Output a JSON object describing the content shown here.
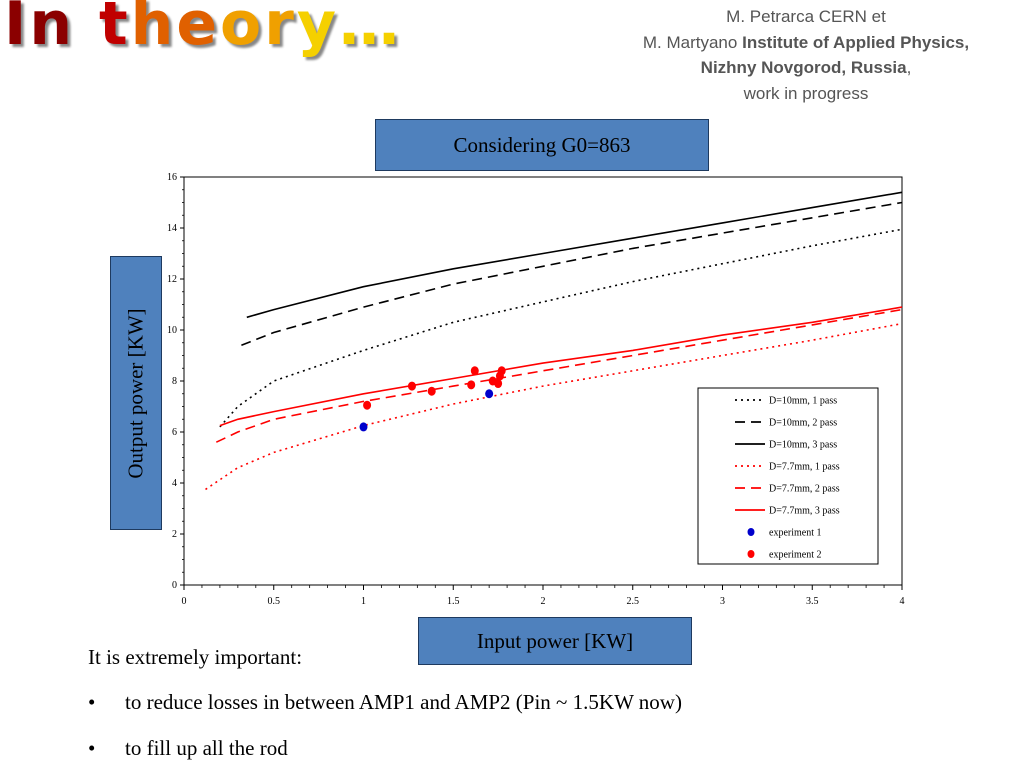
{
  "slide": {
    "title": "In theory…",
    "authors_line1": "M. Petrarca CERN et",
    "authors_line2_name": "M. Martyano",
    "authors_line2_inst": "Institute of Applied Physics,",
    "authors_line3_inst": "Nizhny Novgorod, Russia",
    "authors_line3_suffix": ",",
    "authors_line4": "work in progress",
    "intro": "It is extremely important:",
    "bullets": [
      "to reduce losses in between AMP1 and AMP2 (Pin ~ 1.5KW now)",
      "to fill up all the rod"
    ],
    "bullet_symbol": "•"
  },
  "colors": {
    "box_fill": "#4F81BD",
    "black_series": "#000000",
    "red_series": "#FF0000",
    "blue_points": "#0000CC",
    "red_points": "#FF0000",
    "title_gradient": [
      "#8B0000",
      "#C00000",
      "#E06000",
      "#F0A000",
      "#F5D000"
    ]
  },
  "chart_data": {
    "type": "line",
    "title": "Considering G0=863",
    "xlabel": "Input power [KW]",
    "ylabel": "Output power [KW]",
    "xlim": [
      0,
      4
    ],
    "ylim": [
      0,
      16
    ],
    "xticks": [
      "0",
      "0.5",
      "1",
      "1.5",
      "2",
      "2.5",
      "3",
      "3.5",
      "4"
    ],
    "yticks": [
      "0",
      "2",
      "4",
      "6",
      "8",
      "10",
      "12",
      "14",
      "16"
    ],
    "grid": false,
    "legend_position": "lower-right",
    "series": [
      {
        "name": "D=10mm, 1 pass",
        "color": "#000000",
        "dash": "dotted",
        "x": [
          0.2,
          0.3,
          0.5,
          1.0,
          1.5,
          2.0,
          2.5,
          3.0,
          3.5,
          4.0
        ],
        "y": [
          6.2,
          7.0,
          8.0,
          9.2,
          10.3,
          11.1,
          11.9,
          12.6,
          13.3,
          13.95
        ]
      },
      {
        "name": "D=10mm, 2 pass",
        "color": "#000000",
        "dash": "dashed",
        "x": [
          0.32,
          0.5,
          1.0,
          1.5,
          2.0,
          2.5,
          3.0,
          3.5,
          4.0
        ],
        "y": [
          9.4,
          9.9,
          10.9,
          11.8,
          12.5,
          13.2,
          13.8,
          14.4,
          15.0
        ]
      },
      {
        "name": "D=10mm, 3 pass",
        "color": "#000000",
        "dash": "solid",
        "x": [
          0.35,
          0.5,
          1.0,
          1.5,
          2.0,
          2.5,
          3.0,
          3.5,
          4.0
        ],
        "y": [
          10.5,
          10.8,
          11.7,
          12.4,
          13.0,
          13.6,
          14.2,
          14.8,
          15.4
        ]
      },
      {
        "name": "D=7.7mm, 1 pass",
        "color": "#FF0000",
        "dash": "dotted",
        "x": [
          0.12,
          0.3,
          0.5,
          1.0,
          1.5,
          2.0,
          2.5,
          3.0,
          3.5,
          4.0
        ],
        "y": [
          3.75,
          4.6,
          5.2,
          6.25,
          7.1,
          7.8,
          8.4,
          9.0,
          9.6,
          10.25
        ]
      },
      {
        "name": "D=7.7mm, 2 pass",
        "color": "#FF0000",
        "dash": "dashed",
        "x": [
          0.18,
          0.3,
          0.5,
          1.0,
          1.5,
          2.0,
          2.5,
          3.0,
          3.5,
          4.0
        ],
        "y": [
          5.6,
          6.0,
          6.5,
          7.2,
          7.8,
          8.4,
          9.0,
          9.6,
          10.2,
          10.8
        ]
      },
      {
        "name": "D=7.7mm, 3 pass",
        "color": "#FF0000",
        "dash": "solid",
        "x": [
          0.2,
          0.3,
          0.5,
          1.0,
          1.5,
          2.0,
          2.5,
          3.0,
          3.5,
          4.0
        ],
        "y": [
          6.25,
          6.5,
          6.8,
          7.5,
          8.1,
          8.7,
          9.2,
          9.8,
          10.3,
          10.9
        ]
      }
    ],
    "points": [
      {
        "name": "experiment 1",
        "color": "#0000CC",
        "x": [
          1.0,
          1.7
        ],
        "y": [
          6.2,
          7.5
        ]
      },
      {
        "name": "experiment 2",
        "color": "#FF0000",
        "x": [
          1.02,
          1.27,
          1.38,
          1.6,
          1.62,
          1.72,
          1.75,
          1.76,
          1.77
        ],
        "y": [
          7.05,
          7.8,
          7.6,
          7.85,
          8.4,
          8.0,
          7.9,
          8.2,
          8.4
        ]
      }
    ]
  }
}
